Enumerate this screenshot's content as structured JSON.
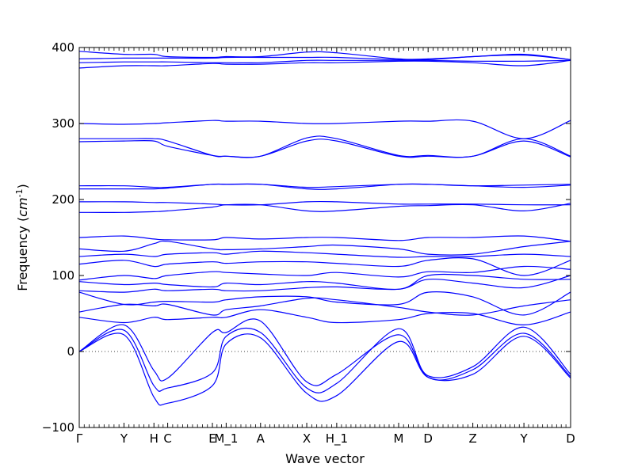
{
  "chart_data": {
    "type": "line",
    "title": "",
    "xlabel": "Wave vector",
    "ylabel": "Frequency ($cm^{-1}$)",
    "ylim": [
      -100,
      400
    ],
    "yticks": [
      -100,
      0,
      100,
      200,
      300,
      400
    ],
    "xlim": [
      0,
      100
    ],
    "x_ticks": [
      {
        "label": "Γ",
        "x": 0
      },
      {
        "label": "Y",
        "x": 9.1
      },
      {
        "label": "H",
        "x": 15.2
      },
      {
        "label": "C",
        "x": 18.0
      },
      {
        "label": "E",
        "x": 27.1
      },
      {
        "label": "M_1",
        "x": 29.9
      },
      {
        "label": "A",
        "x": 36.9
      },
      {
        "label": "X",
        "x": 46.3
      },
      {
        "label": "H_1",
        "x": 52.4
      },
      {
        "label": "M",
        "x": 65.0
      },
      {
        "label": "D",
        "x": 71.0
      },
      {
        "label": "Z",
        "x": 80.1
      },
      {
        "label": "Y",
        "x": 90.5
      },
      {
        "label": "D",
        "x": 100
      }
    ],
    "zero_line": true,
    "grid": false,
    "line_color": "#0000ff",
    "series": [
      {
        "x": [
          0,
          9.1,
          15.2,
          18.0,
          27.1,
          29.9,
          36.9,
          46.3,
          52.4,
          65.0,
          71.0,
          80.1,
          90.5,
          100
        ],
        "values": [
          0,
          22,
          -60,
          -68,
          -45,
          10,
          18,
          -55,
          -58,
          13,
          -34,
          -30,
          20,
          -35
        ]
      },
      {
        "x": [
          0,
          9.1,
          15.2,
          18.0,
          27.1,
          29.9,
          36.9,
          46.3,
          52.4,
          65.0,
          71.0,
          80.1,
          90.5,
          100
        ],
        "values": [
          0,
          28,
          -45,
          -48,
          -28,
          20,
          25,
          -48,
          -42,
          30,
          -34,
          -24,
          24,
          -33
        ]
      },
      {
        "x": [
          0,
          9.1,
          15.2,
          18.0,
          27.1,
          29.9,
          36.9,
          46.3,
          52.4,
          65.0,
          71.0,
          80.1,
          90.5,
          100
        ],
        "values": [
          0,
          35,
          -25,
          -35,
          25,
          25,
          40,
          -40,
          -30,
          22,
          -32,
          -20,
          32,
          -30
        ]
      },
      {
        "x": [
          0,
          9.1,
          15.2,
          18.0,
          27.1,
          29.9,
          36.9,
          46.3,
          52.4,
          65.0,
          71.0,
          80.1,
          90.5,
          100
        ],
        "values": [
          45,
          38,
          45,
          42,
          45,
          45,
          55,
          45,
          38,
          42,
          50,
          50,
          35,
          52
        ]
      },
      {
        "x": [
          0,
          9.1,
          15.2,
          18.0,
          27.1,
          29.9,
          36.9,
          46.3,
          52.4,
          65.0,
          71.0,
          80.1,
          90.5,
          100
        ],
        "values": [
          52,
          62,
          60,
          62,
          48,
          55,
          60,
          70,
          68,
          58,
          52,
          48,
          60,
          68
        ]
      },
      {
        "x": [
          0,
          9.1,
          15.2,
          18.0,
          27.1,
          29.9,
          36.9,
          46.3,
          52.4,
          65.0,
          71.0,
          80.1,
          90.5,
          100
        ],
        "values": [
          78,
          62,
          65,
          66,
          65,
          68,
          72,
          72,
          65,
          62,
          78,
          72,
          48,
          78
        ]
      },
      {
        "x": [
          0,
          9.1,
          15.2,
          18.0,
          27.1,
          29.9,
          36.9,
          46.3,
          52.4,
          65.0,
          71.0,
          80.1,
          90.5,
          100
        ],
        "values": [
          80,
          78,
          82,
          80,
          82,
          80,
          80,
          84,
          85,
          82,
          95,
          90,
          84,
          100
        ]
      },
      {
        "x": [
          0,
          9.1,
          15.2,
          18.0,
          27.1,
          29.9,
          36.9,
          46.3,
          52.4,
          65.0,
          71.0,
          80.1,
          90.5,
          100
        ],
        "values": [
          92,
          88,
          90,
          88,
          85,
          90,
          88,
          92,
          90,
          82,
          100,
          100,
          95,
          95
        ]
      },
      {
        "x": [
          0,
          9.1,
          15.2,
          18.0,
          27.1,
          29.9,
          36.9,
          46.3,
          52.4,
          65.0,
          71.0,
          80.1,
          90.5,
          100
        ],
        "values": [
          94,
          100,
          96,
          100,
          105,
          104,
          102,
          100,
          104,
          98,
          105,
          104,
          112,
          108
        ]
      },
      {
        "x": [
          0,
          9.1,
          15.2,
          18.0,
          27.1,
          29.9,
          36.9,
          46.3,
          52.4,
          65.0,
          71.0,
          80.1,
          90.5,
          100
        ],
        "values": [
          115,
          120,
          112,
          115,
          118,
          116,
          118,
          118,
          116,
          112,
          120,
          122,
          100,
          120
        ]
      },
      {
        "x": [
          0,
          9.1,
          15.2,
          18.0,
          27.1,
          29.9,
          36.9,
          46.3,
          52.4,
          65.0,
          71.0,
          80.1,
          90.5,
          100
        ],
        "values": [
          125,
          128,
          125,
          128,
          130,
          128,
          132,
          130,
          128,
          124,
          125,
          125,
          128,
          125
        ]
      },
      {
        "x": [
          0,
          9.1,
          15.2,
          18.0,
          27.1,
          29.9,
          36.9,
          46.3,
          52.4,
          65.0,
          71.0,
          80.1,
          90.5,
          100
        ],
        "values": [
          135,
          132,
          142,
          145,
          135,
          134,
          135,
          138,
          140,
          135,
          128,
          128,
          138,
          145
        ]
      },
      {
        "x": [
          0,
          9.1,
          15.2,
          18.0,
          27.1,
          29.9,
          36.9,
          46.3,
          52.4,
          65.0,
          71.0,
          80.1,
          90.5,
          100
        ],
        "values": [
          150,
          152,
          148,
          147,
          147,
          150,
          148,
          150,
          150,
          146,
          150,
          150,
          152,
          145
        ]
      },
      {
        "x": [
          0,
          9.1,
          15.2,
          18.0,
          27.1,
          29.9,
          36.9,
          46.3,
          52.4,
          65.0,
          71.0,
          80.1,
          90.5,
          100
        ],
        "values": [
          183,
          183,
          184,
          185,
          190,
          193,
          193,
          185,
          185,
          191,
          192,
          193,
          185,
          195
        ]
      },
      {
        "x": [
          0,
          9.1,
          15.2,
          18.0,
          27.1,
          29.9,
          36.9,
          46.3,
          52.4,
          65.0,
          71.0,
          80.1,
          90.5,
          100
        ],
        "values": [
          197,
          197,
          196,
          196,
          194,
          193,
          193,
          197,
          197,
          194,
          194,
          194,
          193,
          193
        ]
      },
      {
        "x": [
          0,
          9.1,
          15.2,
          18.0,
          27.1,
          29.9,
          36.9,
          46.3,
          52.4,
          65.0,
          71.0,
          80.1,
          90.5,
          100
        ],
        "values": [
          214,
          214,
          214,
          215,
          220,
          220,
          220,
          214,
          214,
          220,
          220,
          218,
          216,
          219
        ]
      },
      {
        "x": [
          0,
          9.1,
          15.2,
          18.0,
          27.1,
          29.9,
          36.9,
          46.3,
          52.4,
          65.0,
          71.0,
          80.1,
          90.5,
          100
        ],
        "values": [
          218,
          218,
          216,
          216,
          220,
          220,
          220,
          216,
          217,
          220,
          220,
          218,
          219,
          220
        ]
      },
      {
        "x": [
          0,
          9.1,
          15.2,
          18.0,
          27.1,
          29.9,
          36.9,
          46.3,
          52.4,
          65.0,
          71.0,
          80.1,
          90.5,
          100
        ],
        "values": [
          276,
          277,
          277,
          270,
          258,
          257,
          257,
          277,
          277,
          257,
          257,
          257,
          277,
          256
        ]
      },
      {
        "x": [
          0,
          9.1,
          15.2,
          18.0,
          27.1,
          29.9,
          36.9,
          46.3,
          52.4,
          65.0,
          71.0,
          80.1,
          90.5,
          100
        ],
        "values": [
          280,
          280,
          280,
          277,
          258,
          257,
          257,
          281,
          280,
          258,
          258,
          257,
          280,
          257
        ]
      },
      {
        "x": [
          0,
          9.1,
          15.2,
          18.0,
          27.1,
          29.9,
          36.9,
          46.3,
          52.4,
          65.0,
          71.0,
          80.1,
          90.5,
          100
        ],
        "values": [
          300,
          299,
          300,
          301,
          304,
          303,
          303,
          300,
          300,
          303,
          303,
          303,
          280,
          304
        ]
      },
      {
        "x": [
          0,
          9.1,
          15.2,
          18.0,
          27.1,
          29.9,
          36.9,
          46.3,
          52.4,
          65.0,
          71.0,
          80.1,
          90.5,
          100
        ],
        "values": [
          373,
          376,
          376,
          376,
          379,
          378,
          378,
          380,
          380,
          382,
          382,
          380,
          376,
          383
        ]
      },
      {
        "x": [
          0,
          9.1,
          15.2,
          18.0,
          27.1,
          29.9,
          36.9,
          46.3,
          52.4,
          65.0,
          71.0,
          80.1,
          90.5,
          100
        ],
        "values": [
          380,
          381,
          381,
          381,
          380,
          380,
          380,
          383,
          383,
          383,
          383,
          382,
          382,
          383
        ]
      },
      {
        "x": [
          0,
          9.1,
          15.2,
          18.0,
          27.1,
          29.9,
          36.9,
          46.3,
          52.4,
          65.0,
          71.0,
          80.1,
          90.5,
          100
        ],
        "values": [
          385,
          386,
          386,
          386,
          386,
          387,
          387,
          387,
          387,
          384,
          384,
          388,
          390,
          384
        ]
      },
      {
        "x": [
          0,
          9.1,
          15.2,
          18.0,
          27.1,
          29.9,
          36.9,
          46.3,
          52.4,
          65.0,
          71.0,
          80.1,
          90.5,
          100
        ],
        "values": [
          395,
          391,
          391,
          388,
          387,
          388,
          388,
          394,
          393,
          385,
          385,
          388,
          391,
          384
        ]
      }
    ]
  }
}
